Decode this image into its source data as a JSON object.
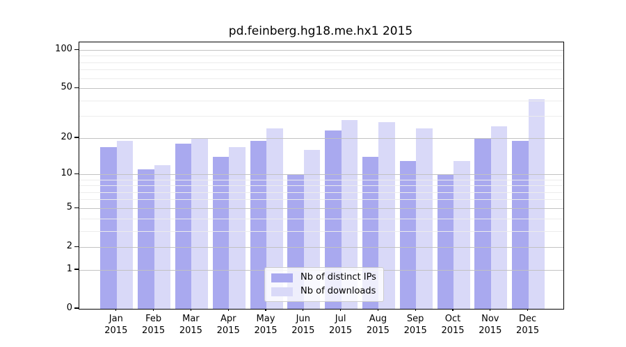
{
  "chart_data": {
    "type": "bar",
    "title": "pd.feinberg.hg18.me.hx1 2015",
    "categories": [
      "Jan",
      "Feb",
      "Mar",
      "Apr",
      "May",
      "Jun",
      "Jul",
      "Aug",
      "Sep",
      "Oct",
      "Nov",
      "Dec"
    ],
    "year": "2015",
    "series": [
      {
        "name": "Nb of distinct IPs",
        "color": "#a9a9ef",
        "values": [
          17,
          11,
          18,
          14,
          19,
          10,
          23,
          14,
          13,
          10,
          20,
          19
        ]
      },
      {
        "name": "Nb of downloads",
        "color": "#d9d9f8",
        "values": [
          19,
          12,
          20,
          17,
          24,
          16,
          28,
          27,
          24,
          13,
          25,
          41
        ]
      }
    ],
    "yscale": "log10(value+1)",
    "y_major_ticks": [
      0,
      1,
      2,
      5,
      10,
      20,
      50,
      100
    ],
    "y_minor_ticks": [
      3,
      4,
      6,
      7,
      8,
      9,
      30,
      40,
      60,
      70,
      80,
      90
    ],
    "ylim": [
      0,
      115
    ],
    "xlabel": "",
    "ylabel": "",
    "grid": true,
    "gridlines_above_bars": true,
    "legend_position": "lower center"
  },
  "colors": {
    "background": "#ffffff",
    "axis_spine": "#000000",
    "grid_major": "#c2c2c2",
    "grid_minor": "#ececec"
  }
}
